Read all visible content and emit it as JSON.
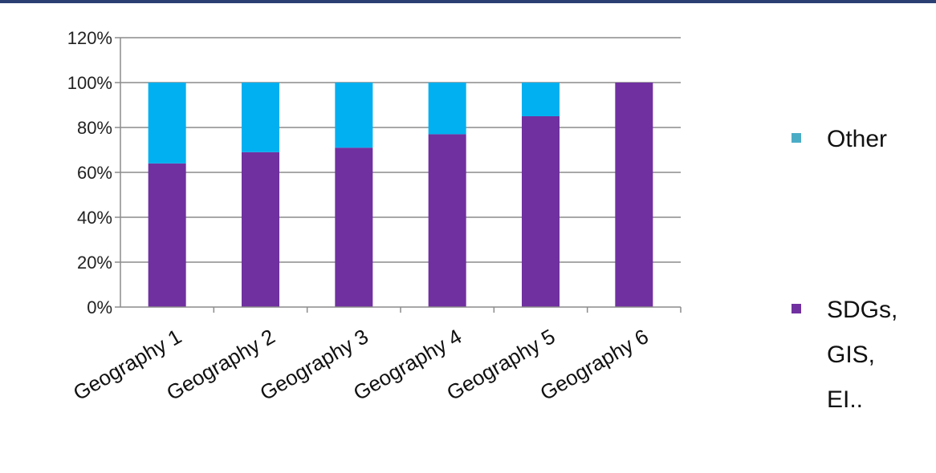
{
  "chart_data": {
    "type": "bar",
    "stacked": true,
    "percent": true,
    "categories": [
      "Geography 1",
      "Geography 2",
      "Geography 3",
      "Geography 4",
      "Geography 5",
      "Geography 6"
    ],
    "series": [
      {
        "name": "SDGs, GIS, EI..",
        "legend_lines": [
          "SDGs,",
          "GIS,",
          "EI.."
        ],
        "color": "#7030a0",
        "values": [
          64,
          69,
          71,
          77,
          85,
          100
        ]
      },
      {
        "name": "Other",
        "legend_lines": [
          "Other"
        ],
        "color": "#00b0f0",
        "values": [
          36,
          31,
          29,
          23,
          15,
          0
        ]
      }
    ],
    "yticks": [
      "0%",
      "20%",
      "40%",
      "60%",
      "80%",
      "100%",
      "120%"
    ],
    "ylim": [
      0,
      120
    ],
    "grid": true,
    "legend": "right",
    "legend_marker_colors": {
      "Other": "#4bacc6",
      "SDGs, GIS, EI..": "#7030a0"
    },
    "title": "",
    "xlabel": "",
    "ylabel": ""
  }
}
